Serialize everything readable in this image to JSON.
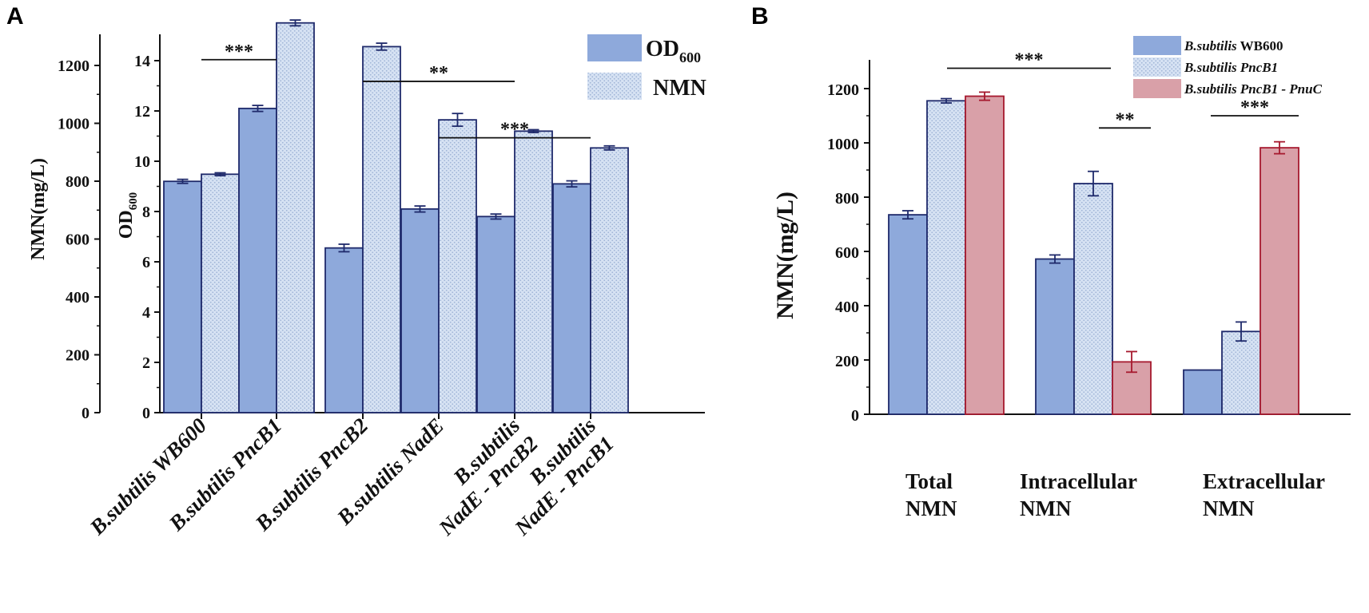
{
  "colors": {
    "blue": "#8EA9DB",
    "blueEdge": "#1F2A6B",
    "hatch": "#D6E2F3",
    "hatchDot": "#9FB4D6",
    "red": "#D9A0A8",
    "redEdge": "#A6192E",
    "axis": "#111111"
  },
  "chart_data": [
    {
      "panel": "A",
      "type": "bar",
      "categories": [
        {
          "line1": "B.subtilis WB600",
          "line2": ""
        },
        {
          "line1": "B.subtilis PncB1",
          "line2": ""
        },
        {
          "line1": "B.subtilis PncB2",
          "line2": ""
        },
        {
          "line1": "B.subtilis NadE",
          "line2": ""
        },
        {
          "line1": "B.subtilis",
          "line2": "NadE - PncB2"
        },
        {
          "line1": "B.subtilis",
          "line2": "NadE - PncB1"
        }
      ],
      "series": [
        {
          "name": "OD600",
          "label_main": "OD",
          "label_sub": "600",
          "axis": "OD600",
          "values": [
            9.2,
            12.1,
            6.55,
            8.1,
            7.8,
            9.1
          ],
          "errors": [
            0.08,
            0.12,
            0.15,
            0.12,
            0.1,
            0.12
          ]
        },
        {
          "name": "NMN",
          "label_main": "NMN",
          "label_sub": "",
          "axis": "NMN",
          "values": [
            824,
            1347,
            1265,
            1012,
            973,
            915
          ],
          "errors": [
            5,
            10,
            12,
            22,
            5,
            7
          ]
        }
      ],
      "left_axis": {
        "label": "NMN(mg/L)",
        "ylim": [
          0,
          1300
        ],
        "ticks": [
          "0",
          "200",
          "400",
          "600",
          "800",
          "1000",
          "1200"
        ]
      },
      "right_axis": {
        "label_main": "OD",
        "label_sub": "600",
        "ylim": [
          0,
          15
        ],
        "ticks": [
          "0",
          "2",
          "4",
          "6",
          "8",
          "10",
          "12",
          "14"
        ]
      },
      "significance": [
        {
          "label": "***",
          "from_category": 0,
          "to_category": 1,
          "at_nmn": 1220
        },
        {
          "label": "**",
          "from_category": 2,
          "to_category": 4,
          "at_nmn": 1145
        },
        {
          "label": "***",
          "from_category": 3,
          "to_category": 5,
          "at_nmn": 950
        }
      ]
    },
    {
      "panel": "B",
      "type": "bar",
      "categories": [
        {
          "line1": "Total",
          "line2": "NMN"
        },
        {
          "line1": "Intracellular",
          "line2": "NMN"
        },
        {
          "line1": "Extracellular",
          "line2": "NMN"
        }
      ],
      "series": [
        {
          "name": "B.subtilis WB600",
          "name_italic": "B.subtilis",
          "name_plain": " WB600",
          "values": [
            735,
            572,
            163
          ],
          "errors": [
            15,
            15,
            0
          ]
        },
        {
          "name": "B.subtilis PncB1",
          "name_italic": "B.subtilis PncB1",
          "name_plain": "",
          "values": [
            1155,
            850,
            305
          ],
          "errors": [
            8,
            45,
            35
          ]
        },
        {
          "name": "B.subtilis PncB1 - PnuC",
          "name_italic": "B.subtilis PncB1 - PnuC",
          "name_plain": "",
          "values": [
            1172,
            193,
            982
          ],
          "errors": [
            15,
            38,
            22
          ]
        }
      ],
      "ylabel": "NMN(mg/L)",
      "ylim": [
        0,
        1300
      ],
      "ticks": [
        "0",
        "200",
        "400",
        "600",
        "800",
        "1000",
        "1200"
      ],
      "significance": [
        {
          "label": "***",
          "from": "Total",
          "to": "Intracellular",
          "at": 1275
        },
        {
          "label": "**",
          "from": "Intracellular",
          "to": "Intracellular",
          "at": 1055
        },
        {
          "label": "***",
          "from": "Extracellular",
          "to": "Extracellular",
          "at": 1100
        }
      ]
    }
  ],
  "panels": {
    "a": "A",
    "b": "B"
  }
}
